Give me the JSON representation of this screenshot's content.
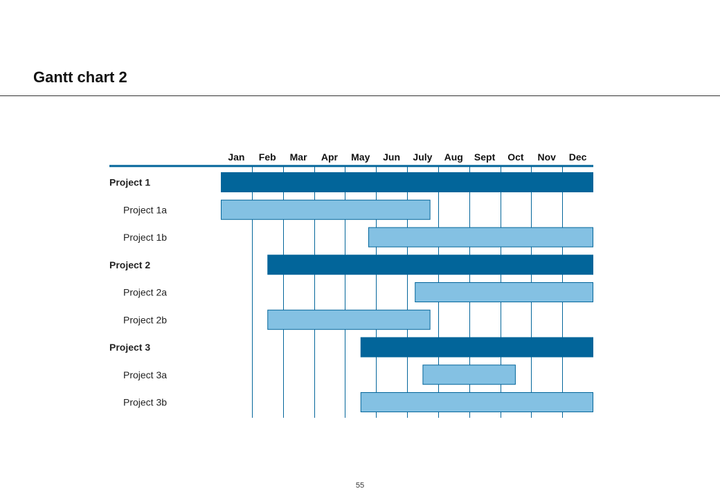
{
  "page": {
    "title": "Gantt chart 2",
    "page_number": "55"
  },
  "colors": {
    "project_bar": "#02659A",
    "subproject_bar": "#84C1E3",
    "grid_line": "#02659A",
    "header_rule": "#02659A"
  },
  "chart_data": {
    "type": "gantt",
    "title": "Gantt chart 2",
    "months": [
      "Jan",
      "Feb",
      "Mar",
      "Apr",
      "May",
      "Jun",
      "July",
      "Aug",
      "Sept",
      "Oct",
      "Nov",
      "Dec"
    ],
    "tasks": [
      {
        "label": "Project 1",
        "level": "project",
        "start": 0.0,
        "end": 12.0
      },
      {
        "label": "Project 1a",
        "level": "subproject",
        "start": 0.0,
        "end": 6.75
      },
      {
        "label": "Project 1b",
        "level": "subproject",
        "start": 4.75,
        "end": 12.0
      },
      {
        "label": "Project 2",
        "level": "project",
        "start": 1.5,
        "end": 12.0
      },
      {
        "label": "Project 2a",
        "level": "subproject",
        "start": 6.25,
        "end": 12.0
      },
      {
        "label": "Project 2b",
        "level": "subproject",
        "start": 1.5,
        "end": 6.75
      },
      {
        "label": "Project 3",
        "level": "project",
        "start": 4.5,
        "end": 12.0
      },
      {
        "label": "Project 3a",
        "level": "subproject",
        "start": 6.5,
        "end": 9.5
      },
      {
        "label": "Project 3b",
        "level": "subproject",
        "start": 4.5,
        "end": 12.0
      }
    ]
  }
}
